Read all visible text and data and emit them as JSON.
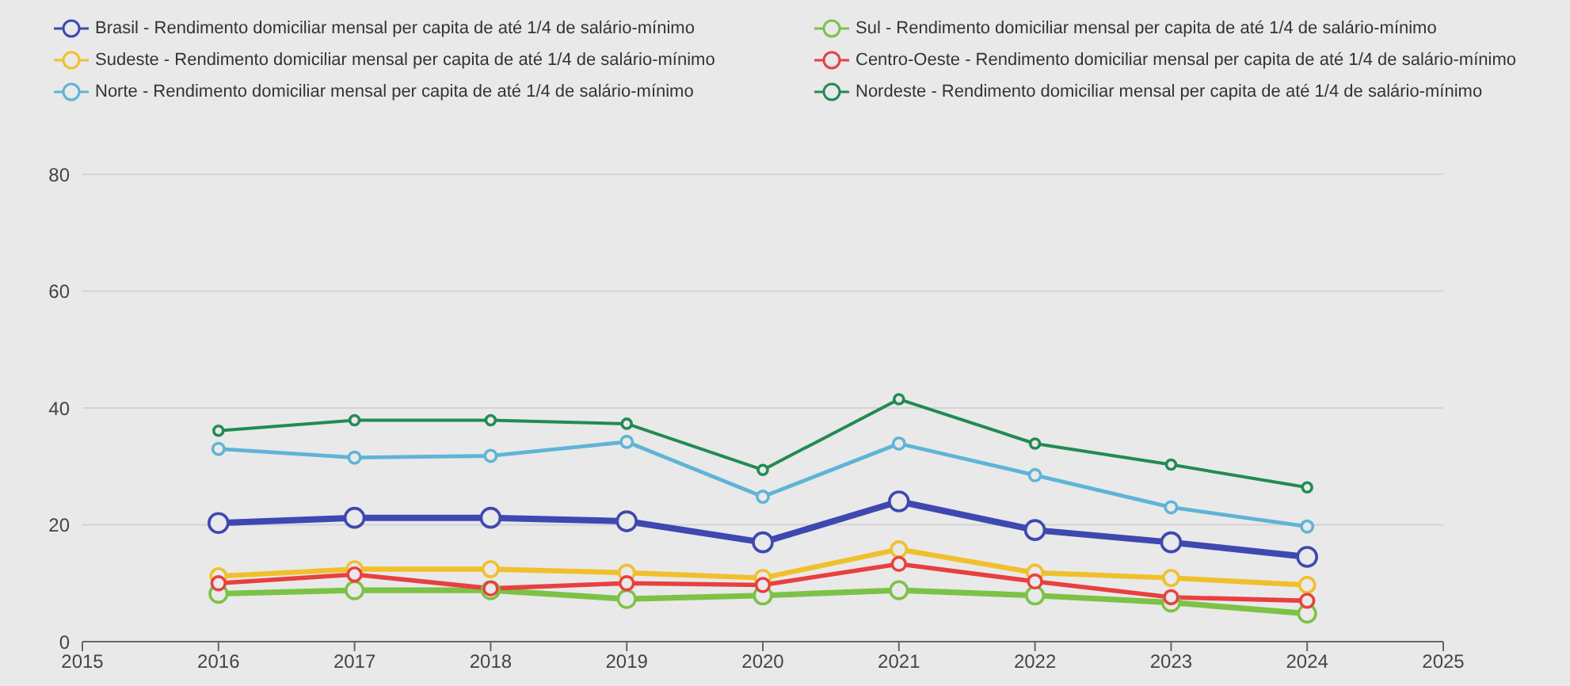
{
  "chart_data": {
    "type": "line",
    "x": [
      2016,
      2017,
      2018,
      2019,
      2020,
      2021,
      2022,
      2023,
      2024
    ],
    "xlim": [
      2015,
      2025
    ],
    "xticks": [
      2015,
      2016,
      2017,
      2018,
      2019,
      2020,
      2021,
      2022,
      2023,
      2024,
      2025
    ],
    "ylim": [
      0,
      80
    ],
    "yticks": [
      0,
      20,
      40,
      60,
      80
    ],
    "grid": "y",
    "legend": "top",
    "marker": "circle",
    "line_style": "solid",
    "series": [
      {
        "name": "Brasil - Rendimento domiciliar mensal per capita de até 1/4 de salário-mínimo",
        "color": "#3f48b0",
        "values": [
          20.3,
          21.2,
          21.2,
          20.6,
          17,
          24,
          19.1,
          17,
          14.5
        ]
      },
      {
        "name": "Sul - Rendimento domiciliar mensal per capita de até 1/4 de salário-mínimo",
        "color": "#7cc246",
        "values": [
          8.2,
          8.8,
          8.8,
          7.3,
          7.9,
          8.8,
          7.9,
          6.7,
          4.8
        ]
      },
      {
        "name": "Sudeste - Rendimento domiciliar mensal per capita de até 1/4 de salário-mínimo",
        "color": "#f0c02c",
        "values": [
          11.2,
          12.4,
          12.4,
          11.8,
          10.9,
          15.8,
          11.8,
          10.9,
          9.7
        ]
      },
      {
        "name": "Centro-Oeste - Rendimento domiciliar mensal per capita de até 1/4 de salário-mínimo",
        "color": "#e8403f",
        "values": [
          10,
          11.5,
          9.1,
          10,
          9.7,
          13.3,
          10.3,
          7.6,
          7
        ]
      },
      {
        "name": "Norte - Rendimento domiciliar mensal per capita de até 1/4 de salário-mínimo",
        "color": "#5fb4d6",
        "values": [
          33,
          31.5,
          31.8,
          34.2,
          24.8,
          33.9,
          28.5,
          23,
          19.7
        ]
      },
      {
        "name": "Nordeste - Rendimento domiciliar mensal per capita de até 1/4 de salário-mínimo",
        "color": "#238a52",
        "values": [
          36.1,
          37.9,
          37.9,
          37.3,
          29.4,
          41.5,
          33.9,
          30.3,
          26.4
        ]
      }
    ]
  }
}
